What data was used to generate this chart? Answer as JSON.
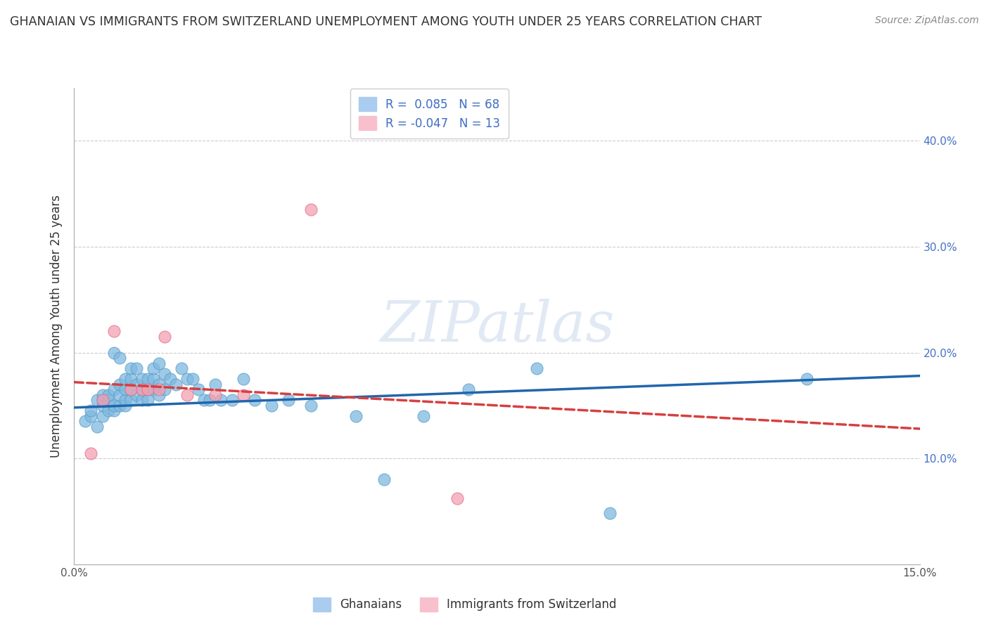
{
  "title": "GHANAIAN VS IMMIGRANTS FROM SWITZERLAND UNEMPLOYMENT AMONG YOUTH UNDER 25 YEARS CORRELATION CHART",
  "source": "Source: ZipAtlas.com",
  "ylabel": "Unemployment Among Youth under 25 years",
  "R_ghanaian": 0.085,
  "N_ghanaian": 68,
  "R_swiss": -0.047,
  "N_swiss": 13,
  "xlim": [
    0.0,
    0.15
  ],
  "ylim": [
    0.0,
    0.45
  ],
  "color_ghanaian": "#7fb9e0",
  "color_ghanaian_edge": "#5a9ec9",
  "color_swiss": "#f4a0b0",
  "color_swiss_edge": "#e07090",
  "line_color_ghanaian": "#2166ac",
  "line_color_swiss": "#d64040",
  "background_color": "#ffffff",
  "ghanaian_x": [
    0.002,
    0.003,
    0.003,
    0.004,
    0.004,
    0.005,
    0.005,
    0.005,
    0.005,
    0.006,
    0.006,
    0.006,
    0.007,
    0.007,
    0.007,
    0.007,
    0.008,
    0.008,
    0.008,
    0.008,
    0.009,
    0.009,
    0.009,
    0.009,
    0.01,
    0.01,
    0.01,
    0.01,
    0.011,
    0.011,
    0.011,
    0.012,
    0.012,
    0.012,
    0.013,
    0.013,
    0.013,
    0.014,
    0.014,
    0.014,
    0.015,
    0.015,
    0.015,
    0.016,
    0.016,
    0.017,
    0.018,
    0.019,
    0.02,
    0.021,
    0.022,
    0.023,
    0.024,
    0.025,
    0.026,
    0.028,
    0.03,
    0.032,
    0.035,
    0.038,
    0.042,
    0.05,
    0.055,
    0.062,
    0.07,
    0.082,
    0.095,
    0.13
  ],
  "ghanaian_y": [
    0.135,
    0.14,
    0.145,
    0.13,
    0.155,
    0.14,
    0.15,
    0.155,
    0.16,
    0.145,
    0.155,
    0.16,
    0.145,
    0.15,
    0.165,
    0.2,
    0.15,
    0.16,
    0.17,
    0.195,
    0.15,
    0.155,
    0.165,
    0.175,
    0.155,
    0.165,
    0.175,
    0.185,
    0.16,
    0.17,
    0.185,
    0.155,
    0.165,
    0.175,
    0.155,
    0.165,
    0.175,
    0.165,
    0.175,
    0.185,
    0.16,
    0.17,
    0.19,
    0.165,
    0.18,
    0.175,
    0.17,
    0.185,
    0.175,
    0.175,
    0.165,
    0.155,
    0.155,
    0.17,
    0.155,
    0.155,
    0.175,
    0.155,
    0.15,
    0.155,
    0.15,
    0.14,
    0.08,
    0.14,
    0.165,
    0.185,
    0.048,
    0.175
  ],
  "swiss_x": [
    0.003,
    0.005,
    0.007,
    0.01,
    0.012,
    0.013,
    0.015,
    0.016,
    0.02,
    0.025,
    0.03,
    0.042,
    0.068
  ],
  "swiss_y": [
    0.105,
    0.155,
    0.22,
    0.165,
    0.165,
    0.165,
    0.165,
    0.215,
    0.16,
    0.16,
    0.16,
    0.335,
    0.062
  ],
  "trend_g_x0": 0.0,
  "trend_g_y0": 0.148,
  "trend_g_x1": 0.15,
  "trend_g_y1": 0.178,
  "trend_s_x0": 0.0,
  "trend_s_y0": 0.172,
  "trend_s_x1": 0.15,
  "trend_s_y1": 0.128
}
